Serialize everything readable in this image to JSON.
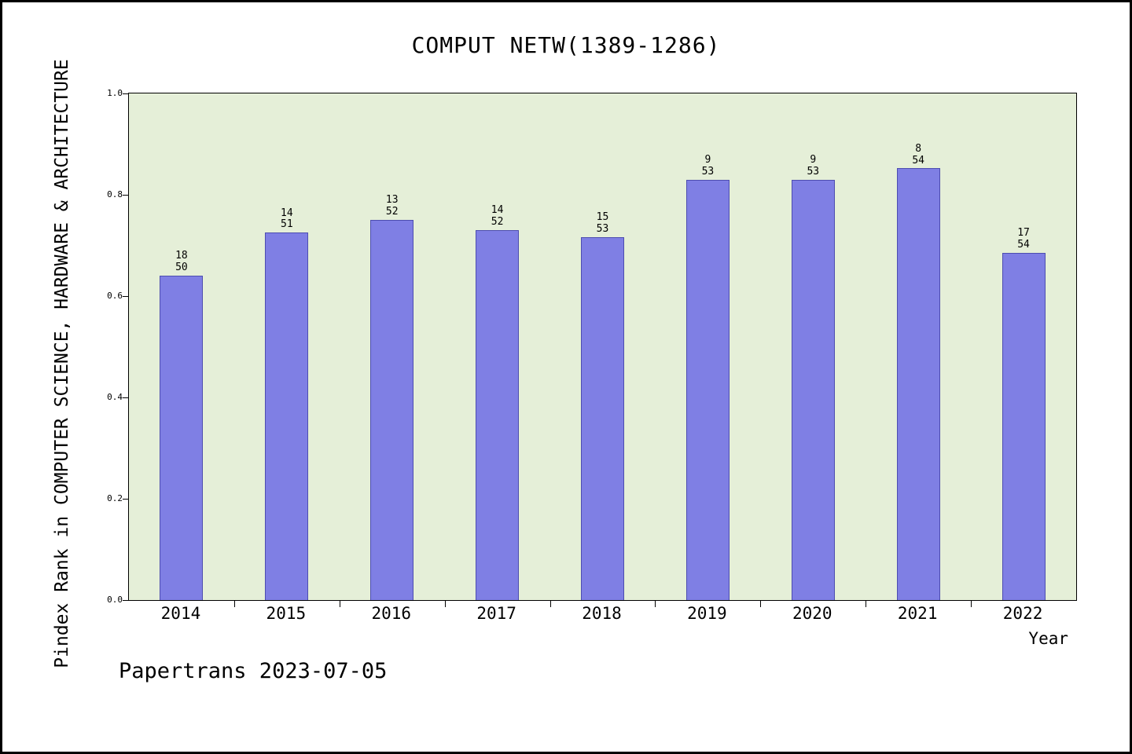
{
  "title": "COMPUT NETW(1389-1286)",
  "y_axis_label": "Pindex Rank in COMPUTER SCIENCE, HARDWARE & ARCHITECTURE",
  "x_axis_label": "Year",
  "footer": "Papertrans 2023-07-05",
  "colors": {
    "bar_fill": "#7f7fe4",
    "bar_border": "#4d4db0",
    "plot_bg": "#e5efd8",
    "frame": "#000000"
  },
  "chart_data": {
    "type": "bar",
    "title": "COMPUT NETW(1389-1286)",
    "xlabel": "Year",
    "ylabel": "Pindex Rank in COMPUTER SCIENCE, HARDWARE & ARCHITECTURE",
    "categories": [
      "2014",
      "2015",
      "2016",
      "2017",
      "2018",
      "2019",
      "2020",
      "2021",
      "2022"
    ],
    "values": [
      0.64,
      0.725,
      0.75,
      0.731,
      0.717,
      0.83,
      0.83,
      0.852,
      0.685
    ],
    "bar_labels": [
      [
        "18",
        "50"
      ],
      [
        "14",
        "51"
      ],
      [
        "13",
        "52"
      ],
      [
        "14",
        "52"
      ],
      [
        "15",
        "53"
      ],
      [
        "9",
        "53"
      ],
      [
        "9",
        "53"
      ],
      [
        "8",
        "54"
      ],
      [
        "17",
        "54"
      ]
    ],
    "ylim": [
      0.0,
      1.0
    ],
    "yticks": [
      "0.0",
      "0.2",
      "0.4",
      "0.6",
      "0.8",
      "1.0"
    ],
    "grid": false,
    "legend": "none",
    "annotation": "Papertrans 2023-07-05"
  }
}
